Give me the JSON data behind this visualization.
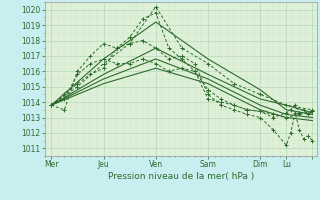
{
  "bg_color": "#c8eef0",
  "plot_bg_color": "#dff0d8",
  "grid_color_major": "#b8d8b8",
  "grid_color_minor": "#c8e8c8",
  "line_color": "#2d6b2d",
  "xlim": [
    0,
    125
  ],
  "ylim": [
    1010.5,
    1020.5
  ],
  "yticks": [
    1011,
    1012,
    1013,
    1014,
    1015,
    1016,
    1017,
    1018,
    1019,
    1020
  ],
  "xtick_positions": [
    3,
    27,
    51,
    75,
    99,
    111,
    123
  ],
  "xtick_labels": [
    "Mer",
    "Jeu",
    "Ven",
    "Sam",
    "Dim",
    "Lu",
    ""
  ],
  "xlabel": "Pression niveau de la mer( hPa )",
  "lines": [
    {
      "x": [
        3,
        9,
        15,
        21,
        27,
        33,
        39,
        45,
        51,
        57,
        63,
        69,
        75,
        81,
        87,
        93,
        99,
        105,
        111,
        117,
        123
      ],
      "y": [
        1013.8,
        1014.5,
        1015.2,
        1015.8,
        1016.2,
        1017.5,
        1018.2,
        1019.4,
        1019.8,
        1017.5,
        1016.8,
        1016.0,
        1014.8,
        1014.2,
        1013.8,
        1013.5,
        1013.4,
        1013.2,
        1013.0,
        1013.2,
        1013.4
      ],
      "style": "dashed",
      "marker": "+"
    },
    {
      "x": [
        3,
        15,
        27,
        39,
        51,
        63,
        75,
        87,
        99,
        111,
        123
      ],
      "y": [
        1013.8,
        1015.0,
        1016.5,
        1017.8,
        1020.2,
        1017.5,
        1016.5,
        1015.2,
        1014.5,
        1013.8,
        1013.5
      ],
      "style": "dashed",
      "marker": "+"
    },
    {
      "x": [
        3,
        27,
        51,
        75,
        99,
        111,
        123
      ],
      "y": [
        1013.8,
        1016.8,
        1019.2,
        1016.8,
        1014.8,
        1013.5,
        1013.2
      ],
      "style": "solid",
      "marker": null
    },
    {
      "x": [
        3,
        27,
        51,
        75,
        99,
        111,
        123
      ],
      "y": [
        1013.8,
        1015.8,
        1017.5,
        1015.8,
        1014.2,
        1013.8,
        1013.3
      ],
      "style": "solid",
      "marker": null
    },
    {
      "x": [
        3,
        27,
        51,
        75,
        99,
        111,
        123
      ],
      "y": [
        1013.8,
        1015.5,
        1016.8,
        1015.5,
        1013.8,
        1013.2,
        1013.0
      ],
      "style": "solid",
      "marker": null
    },
    {
      "x": [
        3,
        27,
        51,
        75,
        99,
        111,
        123
      ],
      "y": [
        1013.8,
        1015.2,
        1016.2,
        1015.2,
        1013.5,
        1013.0,
        1012.8
      ],
      "style": "solid",
      "marker": null
    },
    {
      "x": [
        3,
        9,
        15,
        21,
        27,
        33,
        39,
        45,
        51,
        57,
        63,
        69,
        75,
        81,
        87,
        93,
        99,
        105,
        111,
        113,
        115,
        117,
        119,
        121,
        123
      ],
      "y": [
        1013.8,
        1013.5,
        1016.0,
        1017.0,
        1017.8,
        1017.5,
        1017.8,
        1018.0,
        1017.5,
        1016.8,
        1017.0,
        1016.5,
        1014.5,
        1013.8,
        1013.5,
        1013.2,
        1013.0,
        1012.2,
        1011.2,
        1012.0,
        1013.3,
        1012.2,
        1011.6,
        1011.8,
        1011.5
      ],
      "style": "dashed",
      "marker": "+"
    },
    {
      "x": [
        3,
        9,
        15,
        21,
        27,
        33,
        39,
        45,
        51,
        57,
        63,
        69,
        75,
        81,
        87,
        93,
        99,
        105,
        111,
        113,
        115,
        117,
        119,
        121,
        123
      ],
      "y": [
        1013.8,
        1014.2,
        1015.8,
        1016.5,
        1016.8,
        1016.5,
        1016.5,
        1016.8,
        1016.5,
        1016.0,
        1016.2,
        1016.0,
        1014.2,
        1014.0,
        1013.8,
        1013.5,
        1013.4,
        1013.0,
        1013.3,
        1013.5,
        1013.8,
        1013.3,
        1013.5,
        1013.2,
        1013.4
      ],
      "style": "dashed",
      "marker": "+"
    }
  ]
}
